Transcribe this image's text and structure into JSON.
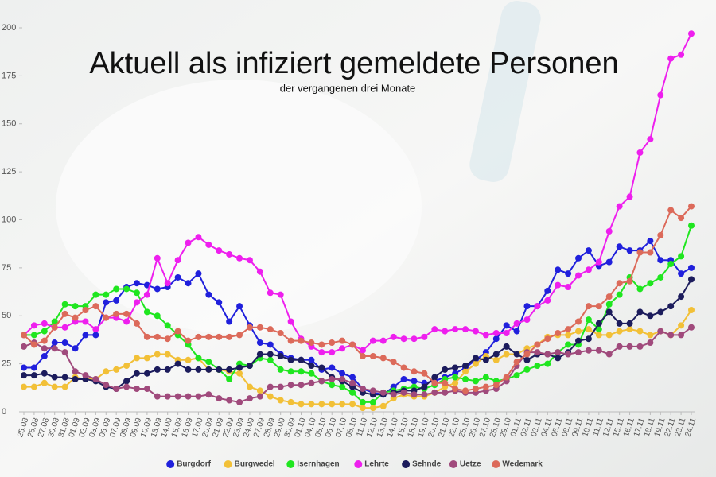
{
  "chart_data": {
    "type": "line",
    "title": "Aktuell als infiziert gemeldete Personen",
    "subtitle": "der vergangenen drei Monate",
    "categories": [
      "25.08",
      "26.08",
      "27.08",
      "30.08",
      "31.08",
      "01.09",
      "02.09",
      "03.09",
      "06.09",
      "07.09",
      "08.09",
      "09.09",
      "10.09",
      "13.09",
      "14.09",
      "15.09",
      "16.09",
      "17.09",
      "20.09",
      "21.09",
      "22.09",
      "23.09",
      "24.09",
      "27.09",
      "28.09",
      "29.09",
      "30.09",
      "01.10",
      "04.10",
      "05.10",
      "06.10",
      "07.10",
      "08.10",
      "11.10",
      "12.10",
      "13.10",
      "14.10",
      "15.10",
      "18.10",
      "19.10",
      "20.10",
      "21.10",
      "22.10",
      "25.10",
      "26.10",
      "27.10",
      "28.10",
      "29.10",
      "01.11",
      "02.11",
      "03.11",
      "04.11",
      "05.11",
      "08.11",
      "09.11",
      "10.11",
      "11.11",
      "12.11",
      "15.11",
      "16.11",
      "17.11",
      "18.11",
      "19.11",
      "22.11",
      "23.11",
      "24.11"
    ],
    "ylim": [
      0,
      200
    ],
    "yticks": [
      0,
      25,
      50,
      75,
      100,
      125,
      150,
      175,
      200
    ],
    "grid": false,
    "legend": "bottom",
    "series": [
      {
        "name": "Burgdorf",
        "color": "#2020dc",
        "values": [
          23,
          23,
          29,
          36,
          36,
          33,
          40,
          40,
          57,
          58,
          65,
          67,
          66,
          64,
          65,
          70,
          67,
          72,
          61,
          57,
          47,
          55,
          45,
          36,
          35,
          30,
          28,
          27,
          27,
          22,
          23,
          20,
          18,
          12,
          10,
          9,
          13,
          17,
          16,
          15,
          16,
          18,
          20,
          23,
          27,
          31,
          38,
          45,
          42,
          55,
          55,
          63,
          74,
          72,
          80,
          84,
          76,
          78,
          86,
          84,
          84,
          89,
          79,
          79,
          72,
          75
        ]
      },
      {
        "name": "Burgwedel",
        "color": "#f2c037",
        "values": [
          13,
          13,
          15,
          13,
          13,
          18,
          17,
          17,
          21,
          22,
          24,
          28,
          28,
          30,
          30,
          27,
          27,
          28,
          22,
          22,
          21,
          20,
          13,
          11,
          8,
          6,
          5,
          4,
          4,
          4,
          4,
          4,
          4,
          2,
          2,
          3,
          7,
          9,
          8,
          8,
          10,
          13,
          15,
          21,
          25,
          29,
          27,
          30,
          30,
          33,
          35,
          39,
          40,
          40,
          42,
          43,
          40,
          40,
          42,
          43,
          42,
          40,
          42,
          40,
          45,
          53
        ]
      },
      {
        "name": "Isernhagen",
        "color": "#1fe61f",
        "values": [
          40,
          40,
          42,
          47,
          56,
          55,
          55,
          61,
          61,
          64,
          64,
          62,
          52,
          50,
          45,
          40,
          35,
          28,
          26,
          22,
          17,
          25,
          24,
          28,
          27,
          22,
          21,
          21,
          20,
          16,
          14,
          13,
          10,
          5,
          5,
          10,
          11,
          12,
          13,
          12,
          14,
          17,
          18,
          17,
          16,
          18,
          16,
          17,
          19,
          22,
          24,
          25,
          31,
          35,
          35,
          48,
          43,
          56,
          61,
          70,
          64,
          67,
          70,
          77,
          81,
          97
        ]
      },
      {
        "name": "Lehrte",
        "color": "#ee1fee",
        "values": [
          40,
          45,
          46,
          44,
          44,
          47,
          47,
          43,
          49,
          49,
          47,
          57,
          61,
          80,
          67,
          79,
          88,
          91,
          87,
          84,
          82,
          80,
          79,
          73,
          62,
          61,
          47,
          38,
          34,
          31,
          31,
          33,
          35,
          32,
          37,
          37,
          39,
          38,
          38,
          39,
          43,
          42,
          43,
          43,
          42,
          40,
          41,
          41,
          46,
          48,
          55,
          58,
          66,
          65,
          71,
          74,
          78,
          94,
          107,
          112,
          135,
          142,
          165,
          184,
          186,
          197
        ]
      },
      {
        "name": "Sehnde",
        "color": "#1c1c5c",
        "values": [
          19,
          19,
          20,
          18,
          18,
          17,
          17,
          16,
          13,
          12,
          16,
          20,
          20,
          22,
          22,
          25,
          22,
          22,
          22,
          22,
          22,
          23,
          24,
          30,
          30,
          29,
          27,
          27,
          24,
          23,
          18,
          16,
          13,
          10,
          9,
          9,
          10,
          11,
          11,
          13,
          18,
          22,
          23,
          24,
          28,
          27,
          30,
          34,
          30,
          27,
          30,
          30,
          28,
          31,
          37,
          38,
          46,
          52,
          46,
          46,
          52,
          50,
          52,
          55,
          60,
          69
        ]
      },
      {
        "name": "Uetze",
        "color": "#a04a7c",
        "values": [
          34,
          36,
          33,
          33,
          31,
          21,
          19,
          17,
          14,
          12,
          13,
          12,
          12,
          8,
          8,
          8,
          8,
          8,
          9,
          7,
          6,
          5,
          7,
          8,
          13,
          13,
          14,
          14,
          15,
          16,
          17,
          17,
          15,
          12,
          11,
          10,
          9,
          10,
          9,
          9,
          10,
          10,
          11,
          10,
          10,
          11,
          12,
          16,
          24,
          31,
          31,
          30,
          31,
          30,
          31,
          32,
          32,
          30,
          34,
          34,
          34,
          36,
          42,
          40,
          40,
          44
        ]
      },
      {
        "name": "Wedemark",
        "color": "#dc6a5a",
        "values": [
          40,
          35,
          37,
          44,
          51,
          49,
          53,
          55,
          49,
          51,
          51,
          46,
          39,
          39,
          38,
          42,
          37,
          39,
          39,
          39,
          39,
          40,
          44,
          44,
          43,
          41,
          37,
          37,
          36,
          35,
          36,
          37,
          35,
          29,
          29,
          28,
          26,
          23,
          21,
          20,
          15,
          15,
          12,
          11,
          12,
          13,
          14,
          18,
          26,
          30,
          35,
          38,
          41,
          43,
          47,
          55,
          55,
          60,
          67,
          68,
          83,
          83,
          92,
          105,
          101,
          107
        ]
      }
    ]
  }
}
